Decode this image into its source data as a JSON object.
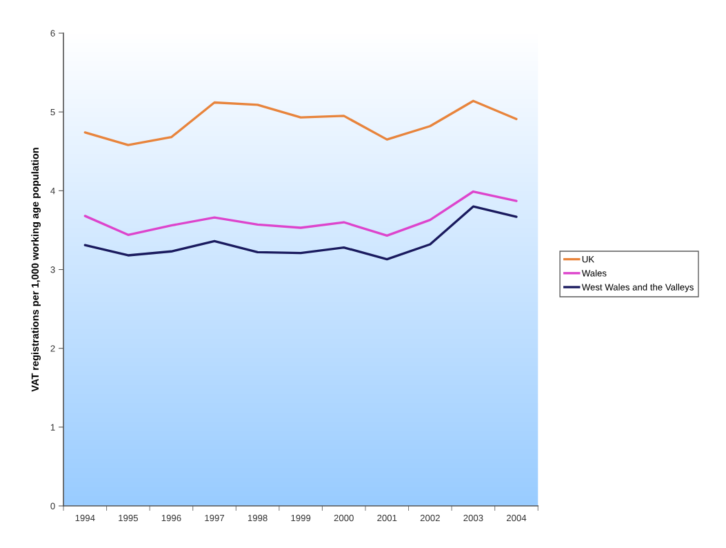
{
  "chart_data": {
    "type": "line",
    "ylabel": "VAT registrations per 1,000 working age population",
    "categories": [
      "1994",
      "1995",
      "1996",
      "1997",
      "1998",
      "1999",
      "2000",
      "2001",
      "2002",
      "2003",
      "2004"
    ],
    "series": [
      {
        "name": "UK",
        "color": "#e8843c",
        "values": [
          4.74,
          4.58,
          4.68,
          5.12,
          5.09,
          4.93,
          4.95,
          4.65,
          4.82,
          5.14,
          4.91
        ]
      },
      {
        "name": "Wales",
        "color": "#dd44cc",
        "values": [
          3.68,
          3.44,
          3.56,
          3.66,
          3.57,
          3.53,
          3.6,
          3.43,
          3.63,
          3.99,
          3.87
        ]
      },
      {
        "name": "West Wales and the Valleys",
        "color": "#1a1a5e",
        "values": [
          3.31,
          3.18,
          3.23,
          3.36,
          3.22,
          3.21,
          3.28,
          3.13,
          3.32,
          3.8,
          3.67
        ]
      }
    ],
    "ylim": [
      0,
      6
    ],
    "yticks": [
      0,
      1,
      2,
      3,
      4,
      5,
      6
    ],
    "grid": false,
    "legend": "right",
    "marker": "none",
    "line_style": "solid"
  }
}
